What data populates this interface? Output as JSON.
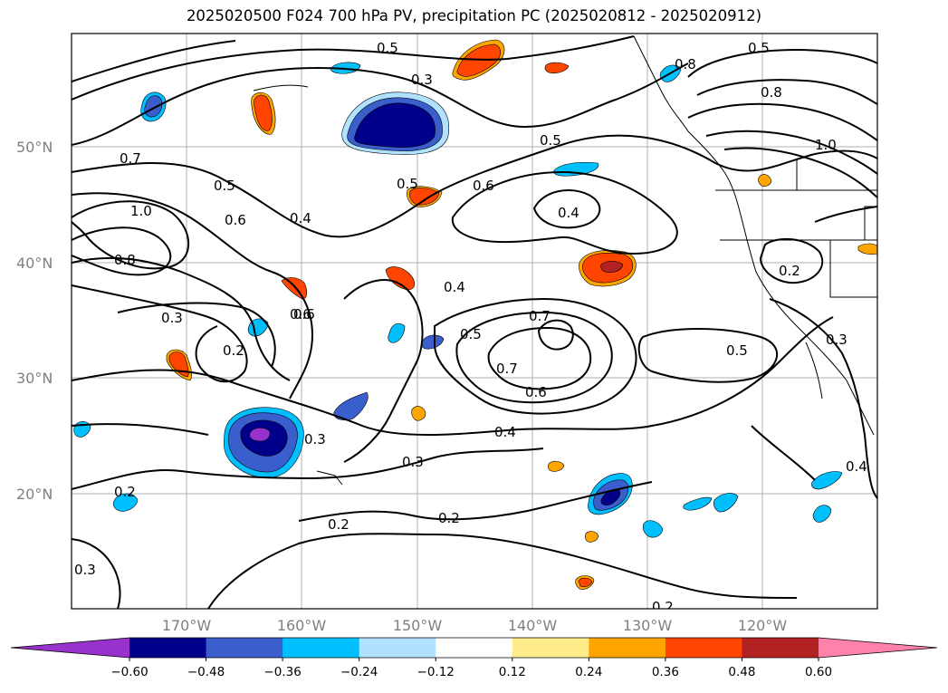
{
  "title": "2025020500 F024 700 hPa PV, precipitation PC (2025020812 - 2025020912)",
  "lat_labels": [
    "50°N",
    "40°N",
    "30°N",
    "20°N"
  ],
  "lon_labels": [
    "170°W",
    "160°W",
    "150°W",
    "140°W",
    "130°W",
    "120°W"
  ],
  "contour_labels": [
    "0.5",
    "0.3",
    "0.8",
    "0.5",
    "0.8",
    "0.7",
    "1.0",
    "0.5",
    "0.6",
    "0.4",
    "0.5",
    "0.5",
    "0.6",
    "0.4",
    "1.0",
    "0.8",
    "0.4",
    "0.2",
    "0.3",
    "0.2",
    "0.6",
    "0.7",
    "0.5",
    "0.7",
    "0.6",
    "0.5",
    "0.3",
    "0.4",
    "0.3",
    "0.3",
    "0.2",
    "0.2",
    "0.4",
    "0.2",
    "0.3",
    "0.6",
    "0.2"
  ],
  "colorbar": {
    "ticks": [
      "−0.60",
      "−0.48",
      "−0.36",
      "−0.24",
      "−0.12",
      "0.12",
      "0.24",
      "0.36",
      "0.48",
      "0.60"
    ],
    "colors": [
      "#9932cc",
      "#00008b",
      "#3a5fcd",
      "#00bfff",
      "#b0e2ff",
      "#ffffff",
      "#ffec8b",
      "#ffa500",
      "#ff4500",
      "#b22222",
      "#ff82ab"
    ]
  }
}
